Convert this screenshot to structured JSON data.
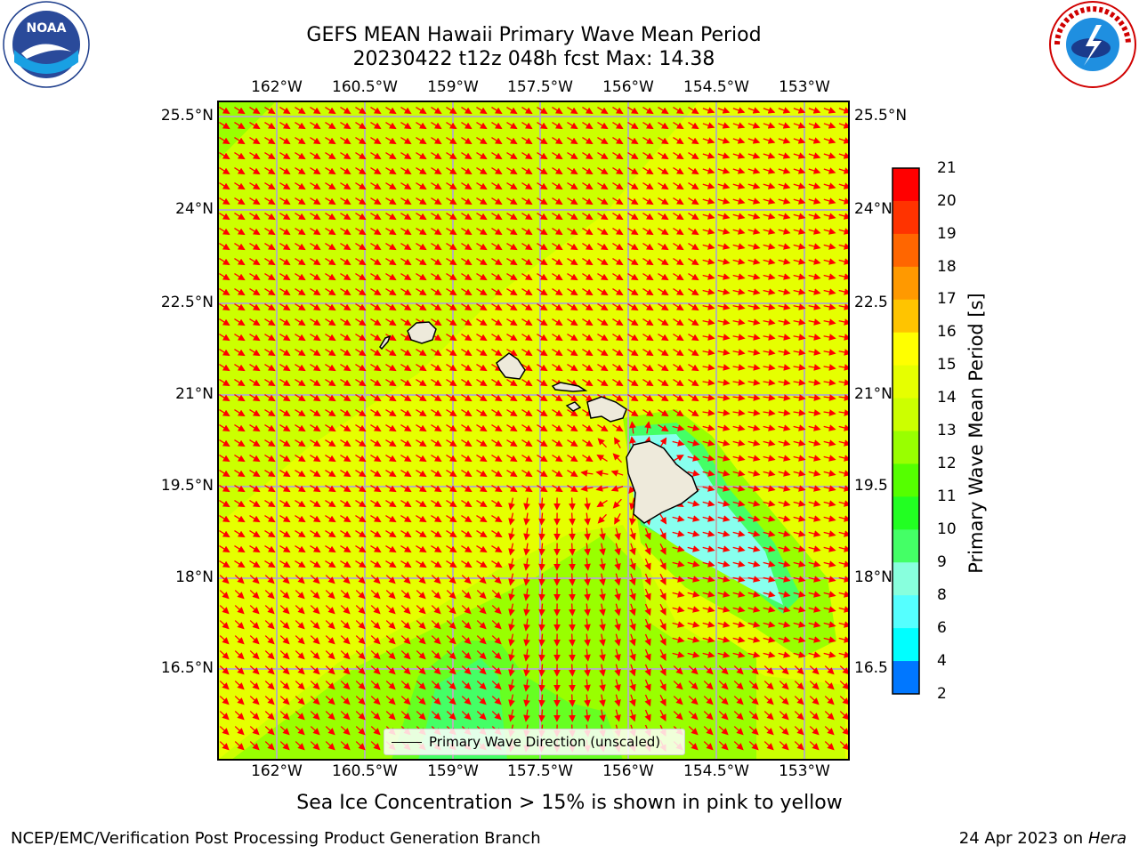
{
  "header": {
    "title_line1": "GEFS MEAN Hawaii Primary Wave Mean Period",
    "title_line2": "20230422 t12z 048h fcst   Max: 14.38"
  },
  "logos": {
    "left": {
      "icon": "noaa-logo",
      "text": "NOAA"
    },
    "right": {
      "icon": "nws-logo",
      "text": "NATIONAL WEATHER SERVICE"
    }
  },
  "axes": {
    "lon_ticks": [
      "162°W",
      "160.5°W",
      "159°W",
      "157.5°W",
      "156°W",
      "154.5°W",
      "153°W"
    ],
    "lat_ticks": [
      "25.5°N",
      "24°N",
      "22.5°N",
      "21°N",
      "19.5°N",
      "18°N",
      "16.5°N"
    ],
    "lat_ticks_right": [
      "25.5°N",
      "24°N",
      "22.5",
      "21°N",
      "19.5",
      "18°N",
      "16.5"
    ]
  },
  "colorbar": {
    "label": "Primary Wave Mean Period [s]",
    "ticks": [
      "21",
      "20",
      "19",
      "18",
      "17",
      "16",
      "15",
      "14",
      "13",
      "12",
      "11",
      "10",
      "9",
      "8",
      "6",
      "4",
      "2"
    ],
    "colors": [
      "#ff0000",
      "#ff3300",
      "#ff6600",
      "#ff9900",
      "#ffc400",
      "#ffff00",
      "#e6ff00",
      "#ccff00",
      "#99ff00",
      "#55ff00",
      "#22ff22",
      "#44ff66",
      "#88ffdd",
      "#55ffff",
      "#00ffff",
      "#0077ff",
      "#0000ff"
    ]
  },
  "map": {
    "arrow_color": "#ff0000",
    "legend": "Primary Wave Direction (unscaled)",
    "max_value": 14.38
  },
  "captions": {
    "sea_ice": "Sea Ice Concentration > 15% is shown in pink to yellow",
    "footer_left": "NCEP/EMC/Verification Post Processing Product Generation Branch",
    "footer_right_date": "24 Apr 2023 on ",
    "footer_right_host": "Hera"
  }
}
